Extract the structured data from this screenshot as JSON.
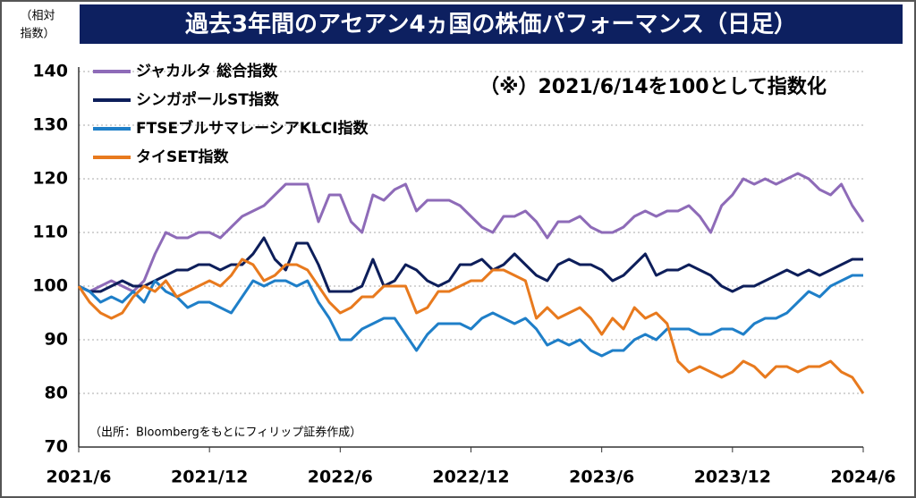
{
  "chart_data": {
    "type": "line",
    "title": "過去3年間のアセアン4ヵ国の株価パフォーマンス（日足）",
    "y_label": [
      "（相対",
      "指数）"
    ],
    "annotation": "（※）2021/6/14を100として指数化",
    "source": "（出所：Bloombergをもとにフィリップ証券作成）",
    "categories": [
      "2021/6",
      null,
      null,
      null,
      null,
      null,
      null,
      null,
      null,
      null,
      null,
      null,
      "2021/12",
      null,
      null,
      null,
      null,
      null,
      null,
      null,
      null,
      null,
      null,
      null,
      "2022/6",
      null,
      null,
      null,
      null,
      null,
      null,
      null,
      null,
      null,
      null,
      null,
      "2022/12",
      null,
      null,
      null,
      null,
      null,
      null,
      null,
      null,
      null,
      null,
      null,
      "2023/6",
      null,
      null,
      null,
      null,
      null,
      null,
      null,
      null,
      null,
      null,
      null,
      "2023/12",
      null,
      null,
      null,
      null,
      null,
      null,
      null,
      null,
      null,
      null,
      null,
      "2024/6"
    ],
    "series": [
      {
        "name": "ジャカルタ 総合指数",
        "color": "#8e6bb8",
        "values": [
          100,
          99,
          100,
          101,
          100,
          99,
          101,
          106,
          110,
          109,
          109,
          110,
          110,
          109,
          111,
          113,
          114,
          115,
          117,
          119,
          119,
          119,
          112,
          117,
          117,
          112,
          110,
          117,
          116,
          118,
          119,
          114,
          116,
          116,
          116,
          115,
          113,
          111,
          110,
          113,
          113,
          114,
          112,
          109,
          112,
          112,
          113,
          111,
          110,
          110,
          111,
          113,
          114,
          113,
          114,
          114,
          115,
          113,
          110,
          115,
          117,
          120,
          119,
          120,
          119,
          120,
          121,
          120,
          118,
          117,
          119,
          115,
          112
        ]
      },
      {
        "name": "シンガポールST指数",
        "color": "#0d1e5a",
        "values": [
          100,
          99,
          99,
          100,
          101,
          100,
          100,
          101,
          102,
          103,
          103,
          104,
          104,
          103,
          104,
          104,
          106,
          109,
          105,
          103,
          108,
          108,
          104,
          99,
          99,
          99,
          100,
          105,
          100,
          101,
          104,
          103,
          101,
          100,
          101,
          104,
          104,
          105,
          103,
          104,
          106,
          104,
          102,
          101,
          104,
          105,
          104,
          104,
          103,
          101,
          102,
          104,
          106,
          102,
          103,
          103,
          104,
          103,
          102,
          100,
          99,
          100,
          100,
          101,
          102,
          103,
          102,
          103,
          102,
          103,
          104,
          105,
          105
        ]
      },
      {
        "name": "FTSEブルサマレーシアKLCI指数",
        "color": "#1f7fc8",
        "values": [
          100,
          99,
          97,
          98,
          97,
          99,
          97,
          101,
          99,
          98,
          96,
          97,
          97,
          96,
          95,
          98,
          101,
          100,
          101,
          101,
          100,
          101,
          97,
          94,
          90,
          90,
          92,
          93,
          94,
          94,
          91,
          88,
          91,
          93,
          93,
          93,
          92,
          94,
          95,
          94,
          93,
          94,
          92,
          89,
          90,
          89,
          90,
          88,
          87,
          88,
          88,
          90,
          91,
          90,
          92,
          92,
          92,
          91,
          91,
          92,
          92,
          91,
          93,
          94,
          94,
          95,
          97,
          99,
          98,
          100,
          101,
          102,
          102
        ]
      },
      {
        "name": "タイSET指数",
        "color": "#e87a1e",
        "values": [
          100,
          97,
          95,
          94,
          95,
          98,
          100,
          99,
          101,
          98,
          99,
          100,
          101,
          100,
          102,
          105,
          104,
          101,
          102,
          104,
          104,
          103,
          100,
          97,
          95,
          96,
          98,
          98,
          100,
          100,
          100,
          95,
          96,
          99,
          99,
          100,
          101,
          101,
          103,
          103,
          102,
          101,
          94,
          96,
          94,
          95,
          96,
          94,
          91,
          94,
          92,
          96,
          94,
          95,
          93,
          86,
          84,
          85,
          84,
          83,
          84,
          86,
          85,
          83,
          85,
          85,
          84,
          85,
          85,
          86,
          84,
          83,
          80
        ]
      }
    ],
    "ylim": [
      70,
      140
    ],
    "yticks": [
      70,
      80,
      90,
      100,
      110,
      120,
      130,
      140
    ],
    "grid": true
  }
}
